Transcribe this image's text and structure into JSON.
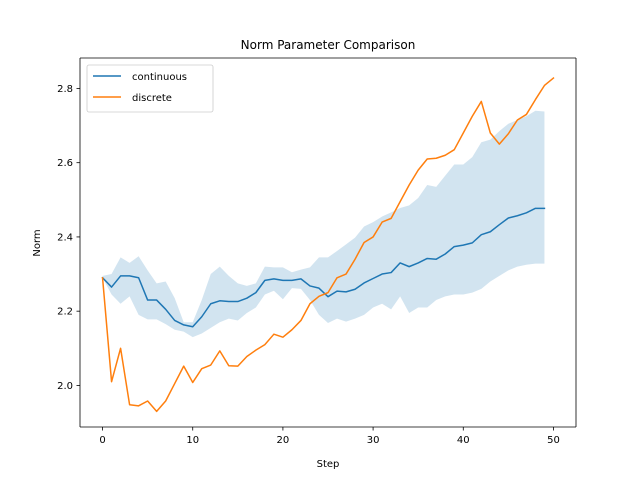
{
  "chart_data": {
    "type": "line",
    "title": "Norm Parameter Comparison",
    "xlabel": "Step",
    "ylabel": "Norm",
    "xlim": [
      -2.5,
      52.5
    ],
    "ylim": [
      1.888,
      2.882
    ],
    "x_ticks": [
      0,
      10,
      20,
      30,
      40,
      50
    ],
    "y_ticks": [
      2.0,
      2.2,
      2.4,
      2.6,
      2.8
    ],
    "y_tick_labels": [
      "2.0",
      "2.2",
      "2.4",
      "2.6",
      "2.8"
    ],
    "grid": false,
    "legend_position": "upper-left",
    "series": [
      {
        "name": "continuous",
        "color": "#1f77b4",
        "x": [
          0,
          1,
          2,
          3,
          4,
          5,
          6,
          7,
          8,
          9,
          10,
          11,
          12,
          13,
          14,
          15,
          16,
          17,
          18,
          19,
          20,
          21,
          22,
          23,
          24,
          25,
          26,
          27,
          28,
          29,
          30,
          31,
          32,
          33,
          34,
          35,
          36,
          37,
          38,
          39,
          40,
          41,
          42,
          43,
          44,
          45,
          46,
          47,
          48,
          49
        ],
        "values": [
          2.29,
          2.265,
          2.295,
          2.295,
          2.29,
          2.23,
          2.23,
          2.205,
          2.175,
          2.163,
          2.158,
          2.185,
          2.22,
          2.228,
          2.226,
          2.226,
          2.235,
          2.25,
          2.283,
          2.287,
          2.283,
          2.283,
          2.287,
          2.268,
          2.262,
          2.239,
          2.254,
          2.252,
          2.259,
          2.276,
          2.288,
          2.3,
          2.304,
          2.33,
          2.32,
          2.33,
          2.342,
          2.34,
          2.354,
          2.374,
          2.378,
          2.384,
          2.406,
          2.414,
          2.433,
          2.451,
          2.457,
          2.465,
          2.477,
          2.477
        ],
        "band_upper": [
          2.295,
          2.3,
          2.345,
          2.33,
          2.348,
          2.31,
          2.275,
          2.28,
          2.235,
          2.17,
          2.17,
          2.23,
          2.3,
          2.32,
          2.295,
          2.275,
          2.268,
          2.275,
          2.32,
          2.318,
          2.318,
          2.305,
          2.312,
          2.318,
          2.345,
          2.345,
          2.362,
          2.38,
          2.398,
          2.428,
          2.44,
          2.455,
          2.466,
          2.478,
          2.485,
          2.505,
          2.54,
          2.535,
          2.565,
          2.595,
          2.595,
          2.615,
          2.655,
          2.662,
          2.685,
          2.705,
          2.715,
          2.725,
          2.74,
          2.738
        ],
        "band_lower": [
          2.29,
          2.245,
          2.22,
          2.24,
          2.19,
          2.178,
          2.178,
          2.165,
          2.15,
          2.145,
          2.13,
          2.14,
          2.155,
          2.17,
          2.18,
          2.175,
          2.195,
          2.21,
          2.245,
          2.255,
          2.232,
          2.262,
          2.26,
          2.23,
          2.19,
          2.168,
          2.18,
          2.172,
          2.18,
          2.19,
          2.21,
          2.22,
          2.205,
          2.24,
          2.195,
          2.21,
          2.21,
          2.23,
          2.24,
          2.245,
          2.245,
          2.25,
          2.26,
          2.28,
          2.295,
          2.31,
          2.32,
          2.325,
          2.328,
          2.328
        ]
      },
      {
        "name": "discrete",
        "color": "#ff7f0e",
        "x": [
          0,
          1,
          2,
          3,
          4,
          5,
          6,
          7,
          8,
          9,
          10,
          11,
          12,
          13,
          14,
          15,
          16,
          17,
          18,
          19,
          20,
          21,
          22,
          23,
          24,
          25,
          26,
          27,
          28,
          29,
          30,
          31,
          32,
          33,
          34,
          35,
          36,
          37,
          38,
          39,
          40,
          41,
          42,
          43,
          44,
          45,
          46,
          47,
          48,
          49,
          50
        ],
        "values": [
          2.29,
          2.01,
          2.1,
          1.948,
          1.945,
          1.958,
          1.93,
          1.958,
          2.005,
          2.052,
          2.008,
          2.045,
          2.055,
          2.093,
          2.053,
          2.052,
          2.078,
          2.095,
          2.11,
          2.138,
          2.13,
          2.15,
          2.175,
          2.22,
          2.24,
          2.25,
          2.29,
          2.3,
          2.34,
          2.385,
          2.4,
          2.44,
          2.45,
          2.495,
          2.54,
          2.58,
          2.61,
          2.612,
          2.62,
          2.635,
          2.68,
          2.725,
          2.765,
          2.68,
          2.65,
          2.678,
          2.715,
          2.73,
          2.77,
          2.808,
          2.828
        ]
      }
    ]
  }
}
